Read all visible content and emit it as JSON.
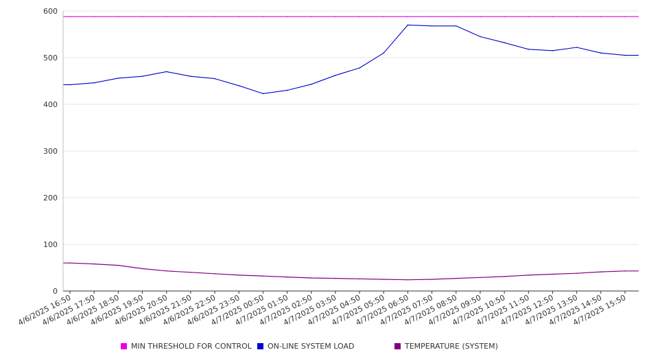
{
  "chart_data": {
    "type": "line",
    "x": [
      "4/6/2025 16:50",
      "4/6/2025 17:50",
      "4/6/2025 18:50",
      "4/6/2025 19:50",
      "4/6/2025 20:50",
      "4/6/2025 21:50",
      "4/6/2025 22:50",
      "4/6/2025 23:50",
      "4/7/2025 00:50",
      "4/7/2025 01:50",
      "4/7/2025 02:50",
      "4/7/2025 03:50",
      "4/7/2025 04:50",
      "4/7/2025 05:50",
      "4/7/2025 06:50",
      "4/7/2025 07:50",
      "4/7/2025 08:50",
      "4/7/2025 09:50",
      "4/7/2025 10:50",
      "4/7/2025 11:50",
      "4/7/2025 12:50",
      "4/7/2025 13:50",
      "4/7/2025 14:50",
      "4/7/2025 15:50"
    ],
    "ylim": [
      0,
      600
    ],
    "yticks": [
      0,
      100,
      200,
      300,
      400,
      500,
      600
    ],
    "grid": true,
    "legend_position": "bottom",
    "series": [
      {
        "name": "MIN THRESHOLD FOR CONTROL",
        "color": "#e600e6",
        "values": [
          588,
          588,
          588,
          588,
          588,
          588,
          588,
          588,
          588,
          588,
          588,
          588,
          588,
          588,
          588,
          588,
          588,
          588,
          588,
          588,
          588,
          588,
          588,
          588
        ]
      },
      {
        "name": "ON-LINE SYSTEM LOAD",
        "color": "#0000cc",
        "values": [
          442,
          446,
          456,
          460,
          470,
          460,
          455,
          440,
          423,
          430,
          443,
          462,
          478,
          510,
          570,
          568,
          568,
          545,
          532,
          518,
          515,
          522,
          510,
          505
        ]
      },
      {
        "name": "TEMPERATURE (SYSTEM)",
        "color": "#800080",
        "values": [
          60,
          58,
          55,
          48,
          43,
          40,
          37,
          34,
          32,
          30,
          28,
          27,
          26,
          25,
          24,
          25,
          27,
          29,
          31,
          34,
          36,
          38,
          41,
          43
        ]
      }
    ]
  },
  "legend": [
    {
      "label": "MIN THRESHOLD FOR CONTROL",
      "color": "#e600e6"
    },
    {
      "label": "ON-LINE SYSTEM LOAD",
      "color": "#0000cc"
    },
    {
      "label": "TEMPERATURE (SYSTEM)",
      "color": "#800080"
    }
  ]
}
